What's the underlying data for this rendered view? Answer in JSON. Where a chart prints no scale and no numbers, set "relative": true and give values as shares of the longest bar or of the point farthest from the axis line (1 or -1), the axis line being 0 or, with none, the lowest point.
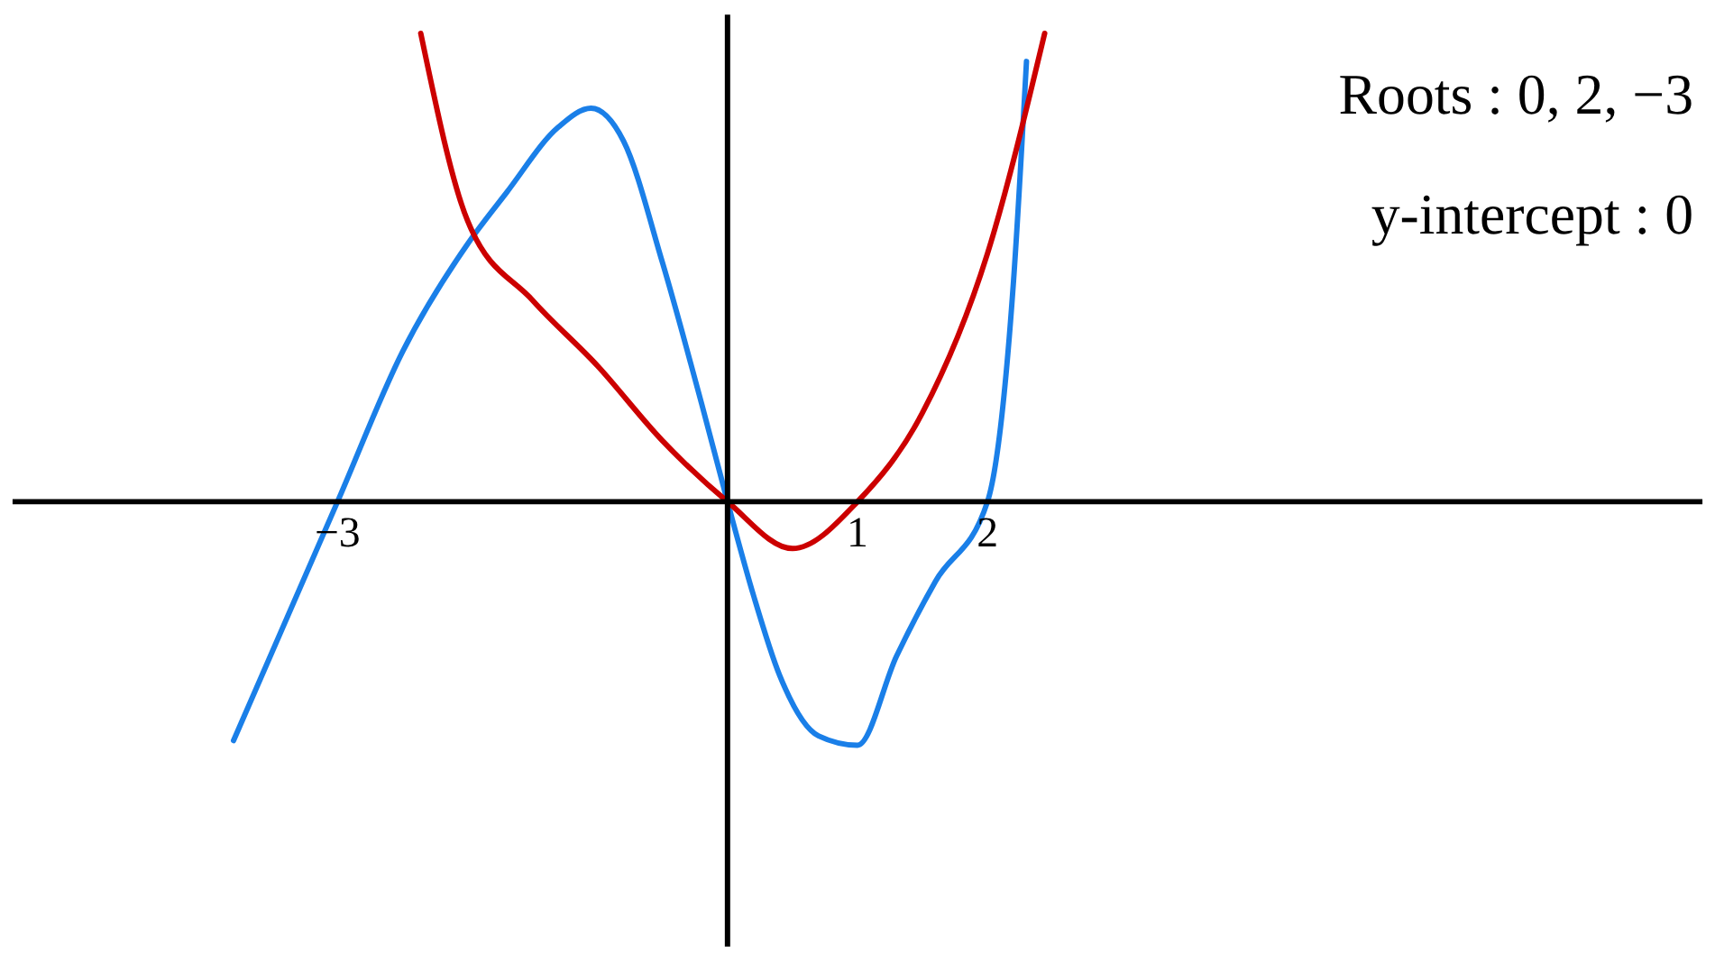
{
  "chart_data": {
    "type": "line",
    "relative": true,
    "xlim": [
      -5.5,
      7.5
    ],
    "xticks": [
      -3,
      1,
      2
    ],
    "series": [
      {
        "color": "#1a7fe8",
        "x": [
          -3.8,
          -3,
          -2.5,
          -2,
          -1.7,
          -1.3,
          -1.05,
          -0.8,
          -0.5,
          -0.2,
          0,
          0.2,
          0.4,
          0.7,
          1,
          1.3,
          1.6,
          2,
          2.2,
          2.3
        ],
        "values": [
          -0.51,
          0,
          0.32,
          0.55,
          0.66,
          0.8,
          0.84,
          0.77,
          0.51,
          0.21,
          0,
          -0.2,
          -0.37,
          -0.5,
          -0.52,
          -0.33,
          -0.17,
          0,
          0.47,
          0.94
        ]
      },
      {
        "color": "#cc0000",
        "x": [
          -2.36,
          -2,
          -1.5,
          -1,
          -0.5,
          0,
          0.5,
          1,
          1.5,
          2,
          2.44
        ],
        "values": [
          1,
          0.6,
          0.43,
          0.29,
          0.13,
          0,
          -0.1,
          0,
          0.19,
          0.53,
          1
        ]
      }
    ],
    "ref_lines": [
      {
        "axis": "x",
        "value": 0,
        "color": "#000000"
      }
    ],
    "annotations": [
      "Roots : 0, 2, −3",
      "y-intercept : 0"
    ]
  }
}
